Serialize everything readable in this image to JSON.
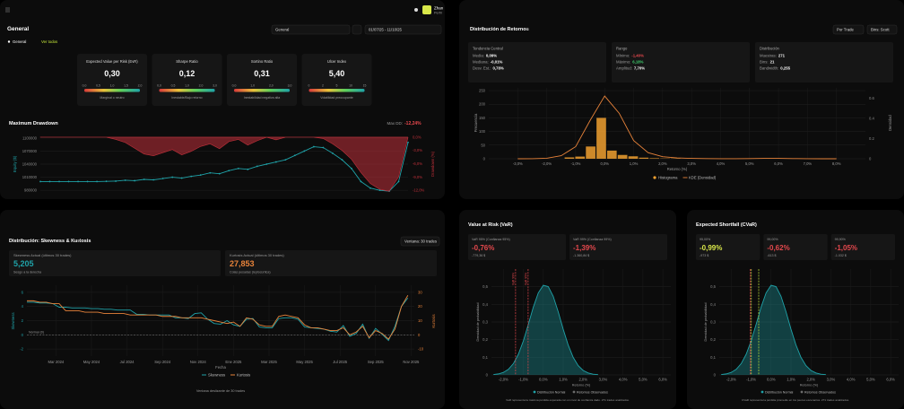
{
  "app": {
    "user_name": "Zhan",
    "user_role": "Perfil"
  },
  "general": {
    "title": "General",
    "selector": "General",
    "date_range": "01/07/25 - 11/10/25",
    "tabs": [
      "General",
      "Ver todos"
    ],
    "cards": [
      {
        "title": "Expected Value per Risk (EvR)",
        "value": "0,30",
        "scale": [
          "0,0",
          "0,5",
          "1,0",
          "1,5",
          "2,0"
        ],
        "note": "Marginal o neutro"
      },
      {
        "title": "Sharpe Ratio",
        "value": "0,12",
        "scale": [
          "0,0",
          "0,5",
          "1,0",
          "2,0",
          "3,0"
        ],
        "note": "Inestable/Bajo retorno"
      },
      {
        "title": "Sortino Ratio",
        "value": "0,31",
        "scale": [
          "0,0",
          "1,0",
          "2,0",
          "3,0"
        ],
        "note": "Inestabilidad negativa alta"
      },
      {
        "title": "Ulcer Index",
        "value": "5,40",
        "scale": [
          "0",
          "2",
          "5",
          "10",
          "15"
        ],
        "note": "Volatilidad preocupante"
      }
    ],
    "drawdown": {
      "type": "line",
      "title": "Maximum Drawdown",
      "max_dd_label": "Max DD:",
      "max_dd_value": "-12,24%",
      "y_label": "Equity ($)",
      "y2_label": "Drawdown (%)",
      "ylim": [
        970000,
        1110000
      ],
      "yticks": [
        980000,
        1010000,
        1040000,
        1070000,
        1100000
      ],
      "y2lim": [
        -13,
        0.8
      ],
      "y2ticks": [
        {
          "value": 0,
          "label": "0,0%"
        },
        {
          "value": -3,
          "label": "-3,0%"
        },
        {
          "value": -6,
          "label": "-6,0%"
        },
        {
          "value": -9,
          "label": "-9,0%"
        },
        {
          "value": -12,
          "label": "-12,0%"
        }
      ],
      "series": [
        {
          "color": "#1fa2a8",
          "values": [
            1000000,
            1000000,
            1000000,
            1000000,
            1000000,
            1000000,
            1000000,
            1000500,
            1001000,
            1003000,
            1002000,
            1005000,
            1004000,
            1007000,
            1010000,
            1008000,
            1012000,
            1015000,
            1020000,
            1018000,
            1025000,
            1030000,
            1028000,
            1035000,
            1040000,
            1045000,
            1050000,
            1060000,
            1070000,
            1080000,
            1078000,
            1065000,
            1050000,
            1030000,
            1000000,
            985000,
            980000,
            978000,
            1000000,
            1090000
          ]
        },
        {
          "color": "#c0303a",
          "axis": "y2",
          "values": [
            0,
            0,
            0,
            0,
            0,
            0,
            0,
            0,
            -0.5,
            -1.2,
            -2.5,
            -3.8,
            -4.2,
            -3.5,
            -2.8,
            -4.0,
            -3.2,
            -2.1,
            -1.5,
            -2.6,
            -1.0,
            -0.5,
            -1.8,
            -0.8,
            0,
            -0.6,
            0,
            0,
            0,
            0,
            -0.3,
            -1.5,
            -3.0,
            -5.0,
            -8.0,
            -10.5,
            -11.8,
            -12.24,
            -9.0,
            0
          ]
        }
      ]
    }
  },
  "returns": {
    "title": "Distribución de Retornos",
    "mode": "Por Trade",
    "bins_mode": "Bins: Scott",
    "stats": [
      {
        "title": "Tendencia Central",
        "rows": [
          {
            "label": "Media:",
            "value": "0,09%"
          },
          {
            "label": "Mediana:",
            "value": "-0,01%"
          },
          {
            "label": "Desv. Est.:",
            "value": "0,78%"
          }
        ]
      },
      {
        "title": "Rango",
        "rows": [
          {
            "label": "Mínimo:",
            "value": "-1,40%",
            "color": "#e5484d"
          },
          {
            "label": "Máximo:",
            "value": "6,18%",
            "color": "#3fcf6e"
          },
          {
            "label": "Amplitud:",
            "value": "7,70%"
          }
        ]
      },
      {
        "title": "Distribución",
        "rows": [
          {
            "label": "Muestras:",
            "value": "271"
          },
          {
            "label": "Bins:",
            "value": "21"
          },
          {
            "label": "Bandwidth:",
            "value": "0,255"
          }
        ]
      }
    ],
    "chart": {
      "type": "histogram",
      "color": "#f0a030",
      "bins": [
        -1.4,
        -1.033,
        -0.667,
        -0.3,
        0.067,
        0.433,
        0.8,
        1.167,
        1.533,
        1.9,
        2.267,
        2.633,
        3.0,
        3.367,
        3.733,
        4.1,
        4.467,
        4.833,
        5.2,
        5.567,
        5.933,
        6.3
      ],
      "counts": [
        5,
        8,
        45,
        150,
        30,
        14,
        9,
        4,
        2,
        1,
        1,
        0,
        0,
        0,
        0,
        0,
        0,
        0,
        0,
        1,
        1
      ],
      "kde": {
        "color": "#e8833a",
        "x": [
          -3,
          -2.5,
          -2,
          -1.5,
          -1,
          -0.5,
          0,
          0.5,
          1,
          1.5,
          2,
          2.5,
          3,
          3.5,
          4,
          4.5,
          5,
          5.5,
          6,
          6.5,
          7,
          7.5,
          8
        ],
        "values": [
          0,
          0.001,
          0.005,
          0.03,
          0.12,
          0.38,
          0.62,
          0.45,
          0.18,
          0.06,
          0.02,
          0.008,
          0.004,
          0.002,
          0.001,
          0.001,
          0.002,
          0.004,
          0.004,
          0.002,
          0.001,
          0,
          0
        ]
      },
      "xlim": [
        -4,
        9
      ],
      "xticks": [
        {
          "value": -3,
          "label": "-3,0%"
        },
        {
          "value": -2,
          "label": "-2,0%"
        },
        {
          "value": -1,
          "label": "-1,0%"
        },
        {
          "value": 0,
          "label": "0,0%"
        },
        {
          "value": 1,
          "label": "1,0%"
        },
        {
          "value": 2,
          "label": "2,0%"
        },
        {
          "value": 3,
          "label": "3,0%"
        },
        {
          "value": 4,
          "label": "4,0%"
        },
        {
          "value": 5,
          "label": "5,0%"
        },
        {
          "value": 6,
          "label": "6,0%"
        },
        {
          "value": 7,
          "label": "7,0%"
        },
        {
          "value": 8,
          "label": "8,0%"
        }
      ],
      "ylim": [
        0,
        260
      ],
      "yticks": [
        0,
        50,
        100,
        150,
        200,
        250
      ],
      "y2lim": [
        0,
        0.7
      ],
      "y2ticks": [
        0,
        0.2,
        0.4,
        0.6
      ],
      "y_label": "Frecuencia",
      "y2_label": "Densidad",
      "x_label": "Retorno (%)",
      "legend": [
        "Histograma",
        "KDE (Densidad)"
      ]
    }
  },
  "skew_kurt": {
    "title": "Distribución: Skewness & Kurtosis",
    "window": "Ventana: 30 trades",
    "cards": [
      {
        "label": "Skewness Actual (últimos 30 trades)",
        "value": "5,205",
        "note": "Sesgo a la derecha",
        "color": "#1fa2a8"
      },
      {
        "label": "Kurtosis Actual (últimos 30 trades)",
        "value": "27,853",
        "note": "Colas pesadas (leptocúrtica)",
        "color": "#e8833a"
      }
    ],
    "chart": {
      "type": "line",
      "xlim": [
        0,
        60
      ],
      "xticks": [
        {
          "value": 4.5,
          "label": "Mar 2024"
        },
        {
          "value": 10,
          "label": "May 2024"
        },
        {
          "value": 15.5,
          "label": "Jul 2024"
        },
        {
          "value": 21,
          "label": "Sep 2024"
        },
        {
          "value": 26.5,
          "label": "Nov 2024"
        },
        {
          "value": 32,
          "label": "Ene 2025"
        },
        {
          "value": 37.5,
          "label": "Mar 2025"
        },
        {
          "value": 43,
          "label": "May 2025"
        },
        {
          "value": 48.5,
          "label": "Jul 2025"
        },
        {
          "value": 54,
          "label": "Sep 2025"
        },
        {
          "value": 59.5,
          "label": "Nov 2025"
        }
      ],
      "ylim": [
        -3,
        7
      ],
      "yticks": [
        -2,
        0,
        2,
        4,
        6
      ],
      "y2lim": [
        -15,
        35
      ],
      "y2ticks": [
        -10,
        0,
        10,
        20,
        30
      ],
      "y_label": "Skewness",
      "y2_label": "Kurtosis",
      "x_label": "Fecha",
      "reference": {
        "value": 0,
        "label": "Normal (0)"
      },
      "series": [
        {
          "name": "Skewness",
          "color": "#1fa2a8",
          "values": [
            4.6,
            4.6,
            4.5,
            4.5,
            4.4,
            3.9,
            3.9,
            3.8,
            3.8,
            3.8,
            3.7,
            3.7,
            3.6,
            3.6,
            3.5,
            3.5,
            3.5,
            2.9,
            2.9,
            2.8,
            2.8,
            2.8,
            2.8,
            2.4,
            2.4,
            2.3,
            3.0,
            3.1,
            2.2,
            1.6,
            1.5,
            2.0,
            1.4,
            1.2,
            2.2,
            2.3,
            1.1,
            1.0,
            1.0,
            2.3,
            2.4,
            2.4,
            2.2,
            1.1,
            1.0,
            0.9,
            0.8,
            0.5,
            0.4,
            1.3,
            -0.2,
            0.2,
            1.5,
            -0.5,
            0.9,
            0.1,
            -0.8,
            1.2,
            4.0,
            5.2
          ]
        },
        {
          "name": "Kurtosis",
          "color": "#e8833a",
          "axis": "y2",
          "values": [
            24,
            24,
            23,
            23,
            22,
            22,
            17,
            17,
            17,
            16,
            16,
            16,
            15,
            15,
            15,
            15,
            14,
            14,
            14,
            14,
            14,
            13,
            13,
            13,
            12,
            12,
            12,
            12,
            11,
            10,
            9,
            8,
            9,
            6,
            12,
            11,
            7,
            6,
            6,
            13,
            14,
            13,
            12,
            7,
            5,
            5,
            4,
            3,
            3,
            5,
            0,
            2,
            6,
            -2,
            3,
            1,
            -3,
            4,
            20,
            27.9
          ]
        }
      ]
    },
    "footnote": "Ventana deslizante de 30 trades"
  },
  "var": {
    "title": "Value at Risk (VaR)",
    "cards": [
      {
        "label": "VaR 95% (Confianza 95%)",
        "value": "-0,76%",
        "sub": "-779,36 $",
        "color": "#e5484d"
      },
      {
        "label": "VaR 99% (Confianza 99%)",
        "value": "-1,39%",
        "sub": "-1.360,84 $",
        "color": "#e5484d"
      }
    ],
    "chart": {
      "type": "area",
      "color": "#1fa2a8",
      "x": [
        -2.5,
        -2.25,
        -2,
        -1.75,
        -1.5,
        -1.25,
        -1,
        -0.75,
        -0.5,
        -0.25,
        0,
        0.25,
        0.5,
        0.75,
        1,
        1.25,
        1.5,
        1.75,
        2,
        2.25,
        2.5,
        2.75
      ],
      "values": [
        0.0021,
        0.0057,
        0.0141,
        0.0317,
        0.064,
        0.1169,
        0.1927,
        0.2864,
        0.3843,
        0.4651,
        0.5081,
        0.5008,
        0.4456,
        0.3577,
        0.259,
        0.1693,
        0.0998,
        0.0531,
        0.0255,
        0.0111,
        0.0043,
        0.0015
      ],
      "xlim": [
        -2.6,
        6.4
      ],
      "xticks": [
        {
          "value": -2,
          "label": "-2,0%"
        },
        {
          "value": -1,
          "label": "-1,0%"
        },
        {
          "value": 0,
          "label": "0,0%"
        },
        {
          "value": 1,
          "label": "1,0%"
        },
        {
          "value": 2,
          "label": "2,0%"
        },
        {
          "value": 3,
          "label": "3,0%"
        },
        {
          "value": 4,
          "label": "4,0%"
        },
        {
          "value": 5,
          "label": "5,0%"
        },
        {
          "value": 6,
          "label": "6,0%"
        }
      ],
      "ylim": [
        0,
        0.6
      ],
      "yticks": [
        0,
        {
          "value": 0.1,
          "label": "0,1"
        },
        {
          "value": 0.2,
          "label": "0,2"
        },
        {
          "value": 0.3,
          "label": "0,3"
        },
        {
          "value": 0.4,
          "label": "0,4"
        },
        {
          "value": 0.5,
          "label": "0,5"
        }
      ],
      "y_label": "Densidad de probabilidad",
      "x_label": "Retorno (%)",
      "cutoffs": [
        {
          "value": -0.76,
          "label": "VaR 95%",
          "color": "#e5484d"
        },
        {
          "value": -1.39,
          "label": "VaR 99%",
          "color": "#e5484d"
        }
      ],
      "legend": [
        "Distribución Normal",
        "Retornos Observados"
      ],
      "legend_colors": [
        "#1fa2a8",
        "#6b6b6b"
      ]
    },
    "footnote": "VaR representa la máxima pérdida esperada con un nivel de confianza dado. 271 trades analizados."
  },
  "cvar": {
    "title": "Expected Shortfall (CVaR)",
    "cards": [
      {
        "label": "95,00%",
        "value": "-0,99%",
        "sub": "-973 $",
        "color": "#d9e84a"
      },
      {
        "label": "99,00%",
        "value": "-0,62%",
        "sub": "-613 $",
        "color": "#e5484d"
      },
      {
        "label": "99,90%",
        "value": "-1,05%",
        "sub": "-1.032 $",
        "color": "#e5484d"
      }
    ],
    "chart": {
      "type": "area",
      "color": "#1fa2a8",
      "x": [
        -2.5,
        -2.25,
        -2,
        -1.75,
        -1.5,
        -1.25,
        -1,
        -0.75,
        -0.5,
        -0.25,
        0,
        0.25,
        0.5,
        0.75,
        1,
        1.25,
        1.5,
        1.75,
        2,
        2.25,
        2.5,
        2.75
      ],
      "values": [
        0.0021,
        0.0057,
        0.0141,
        0.0317,
        0.064,
        0.1169,
        0.1927,
        0.2864,
        0.3843,
        0.4651,
        0.5081,
        0.5008,
        0.4456,
        0.3577,
        0.259,
        0.1693,
        0.0998,
        0.0531,
        0.0255,
        0.0111,
        0.0043,
        0.0015
      ],
      "xlim": [
        -2.6,
        6.4
      ],
      "xticks": [
        {
          "value": -2,
          "label": "-2,0%"
        },
        {
          "value": -1,
          "label": "-1,0%"
        },
        {
          "value": 0,
          "label": "0,0%"
        },
        {
          "value": 1,
          "label": "1,0%"
        },
        {
          "value": 2,
          "label": "2,0%"
        },
        {
          "value": 3,
          "label": "3,0%"
        },
        {
          "value": 4,
          "label": "4,0%"
        },
        {
          "value": 5,
          "label": "5,0%"
        },
        {
          "value": 6,
          "label": "6,0%"
        }
      ],
      "ylim": [
        0,
        0.6
      ],
      "yticks": [
        0,
        {
          "value": 0.1,
          "label": "0,1"
        },
        {
          "value": 0.2,
          "label": "0,2"
        },
        {
          "value": 0.3,
          "label": "0,3"
        },
        {
          "value": 0.4,
          "label": "0,4"
        },
        {
          "value": 0.5,
          "label": "0,5"
        }
      ],
      "y_label": "Densidad de probabilidad",
      "x_label": "Retorno (%)",
      "cutoffs": [
        {
          "value": -0.99,
          "color": "#d9e84a"
        },
        {
          "value": -0.62,
          "color": "#c6e83a"
        },
        {
          "value": -1.05,
          "color": "#e5484d"
        }
      ],
      "legend": [
        "Distribución Normal",
        "Retornos Observados"
      ],
      "legend_colors": [
        "#1fa2a8",
        "#6b6b6b"
      ]
    },
    "footnote": "CVaR representa la pérdida promedio en los peores escenarios. 271 trades analizados."
  }
}
